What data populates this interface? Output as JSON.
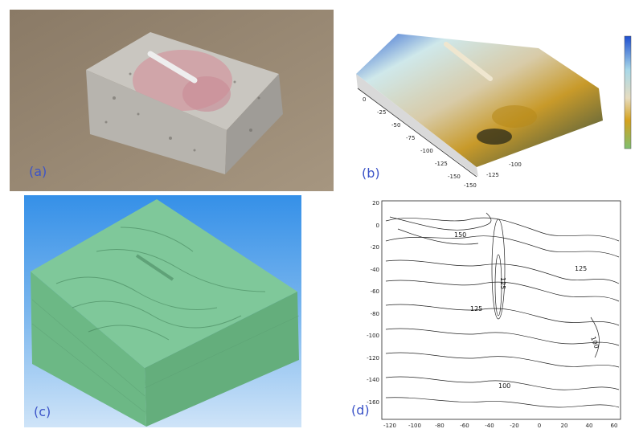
{
  "panels": {
    "a": {
      "label": "(a)"
    },
    "b": {
      "label": "(b)",
      "axis_ticks_y": [
        "0",
        "-25",
        "-50",
        "-75",
        "-100",
        "-125",
        "-150"
      ],
      "axis_ticks_x": [
        "-150",
        "-125",
        "-100"
      ]
    },
    "c": {
      "label": "(c)"
    },
    "d": {
      "label": "(d)",
      "y_ticks": [
        "20",
        "0",
        "-20",
        "-40",
        "-60",
        "-80",
        "-100",
        "-120",
        "-140",
        "-160"
      ],
      "x_ticks": [
        "-120",
        "-100",
        "-80",
        "-60",
        "-40",
        "-20",
        "0",
        "20",
        "40",
        "60"
      ],
      "contour_labels": [
        "150",
        "125",
        "125",
        "125",
        "100",
        "100"
      ]
    }
  },
  "colors": {
    "label": "#3c54c8",
    "mesh_green": "#7fc89a",
    "blue_bg": "#3a93e6"
  }
}
